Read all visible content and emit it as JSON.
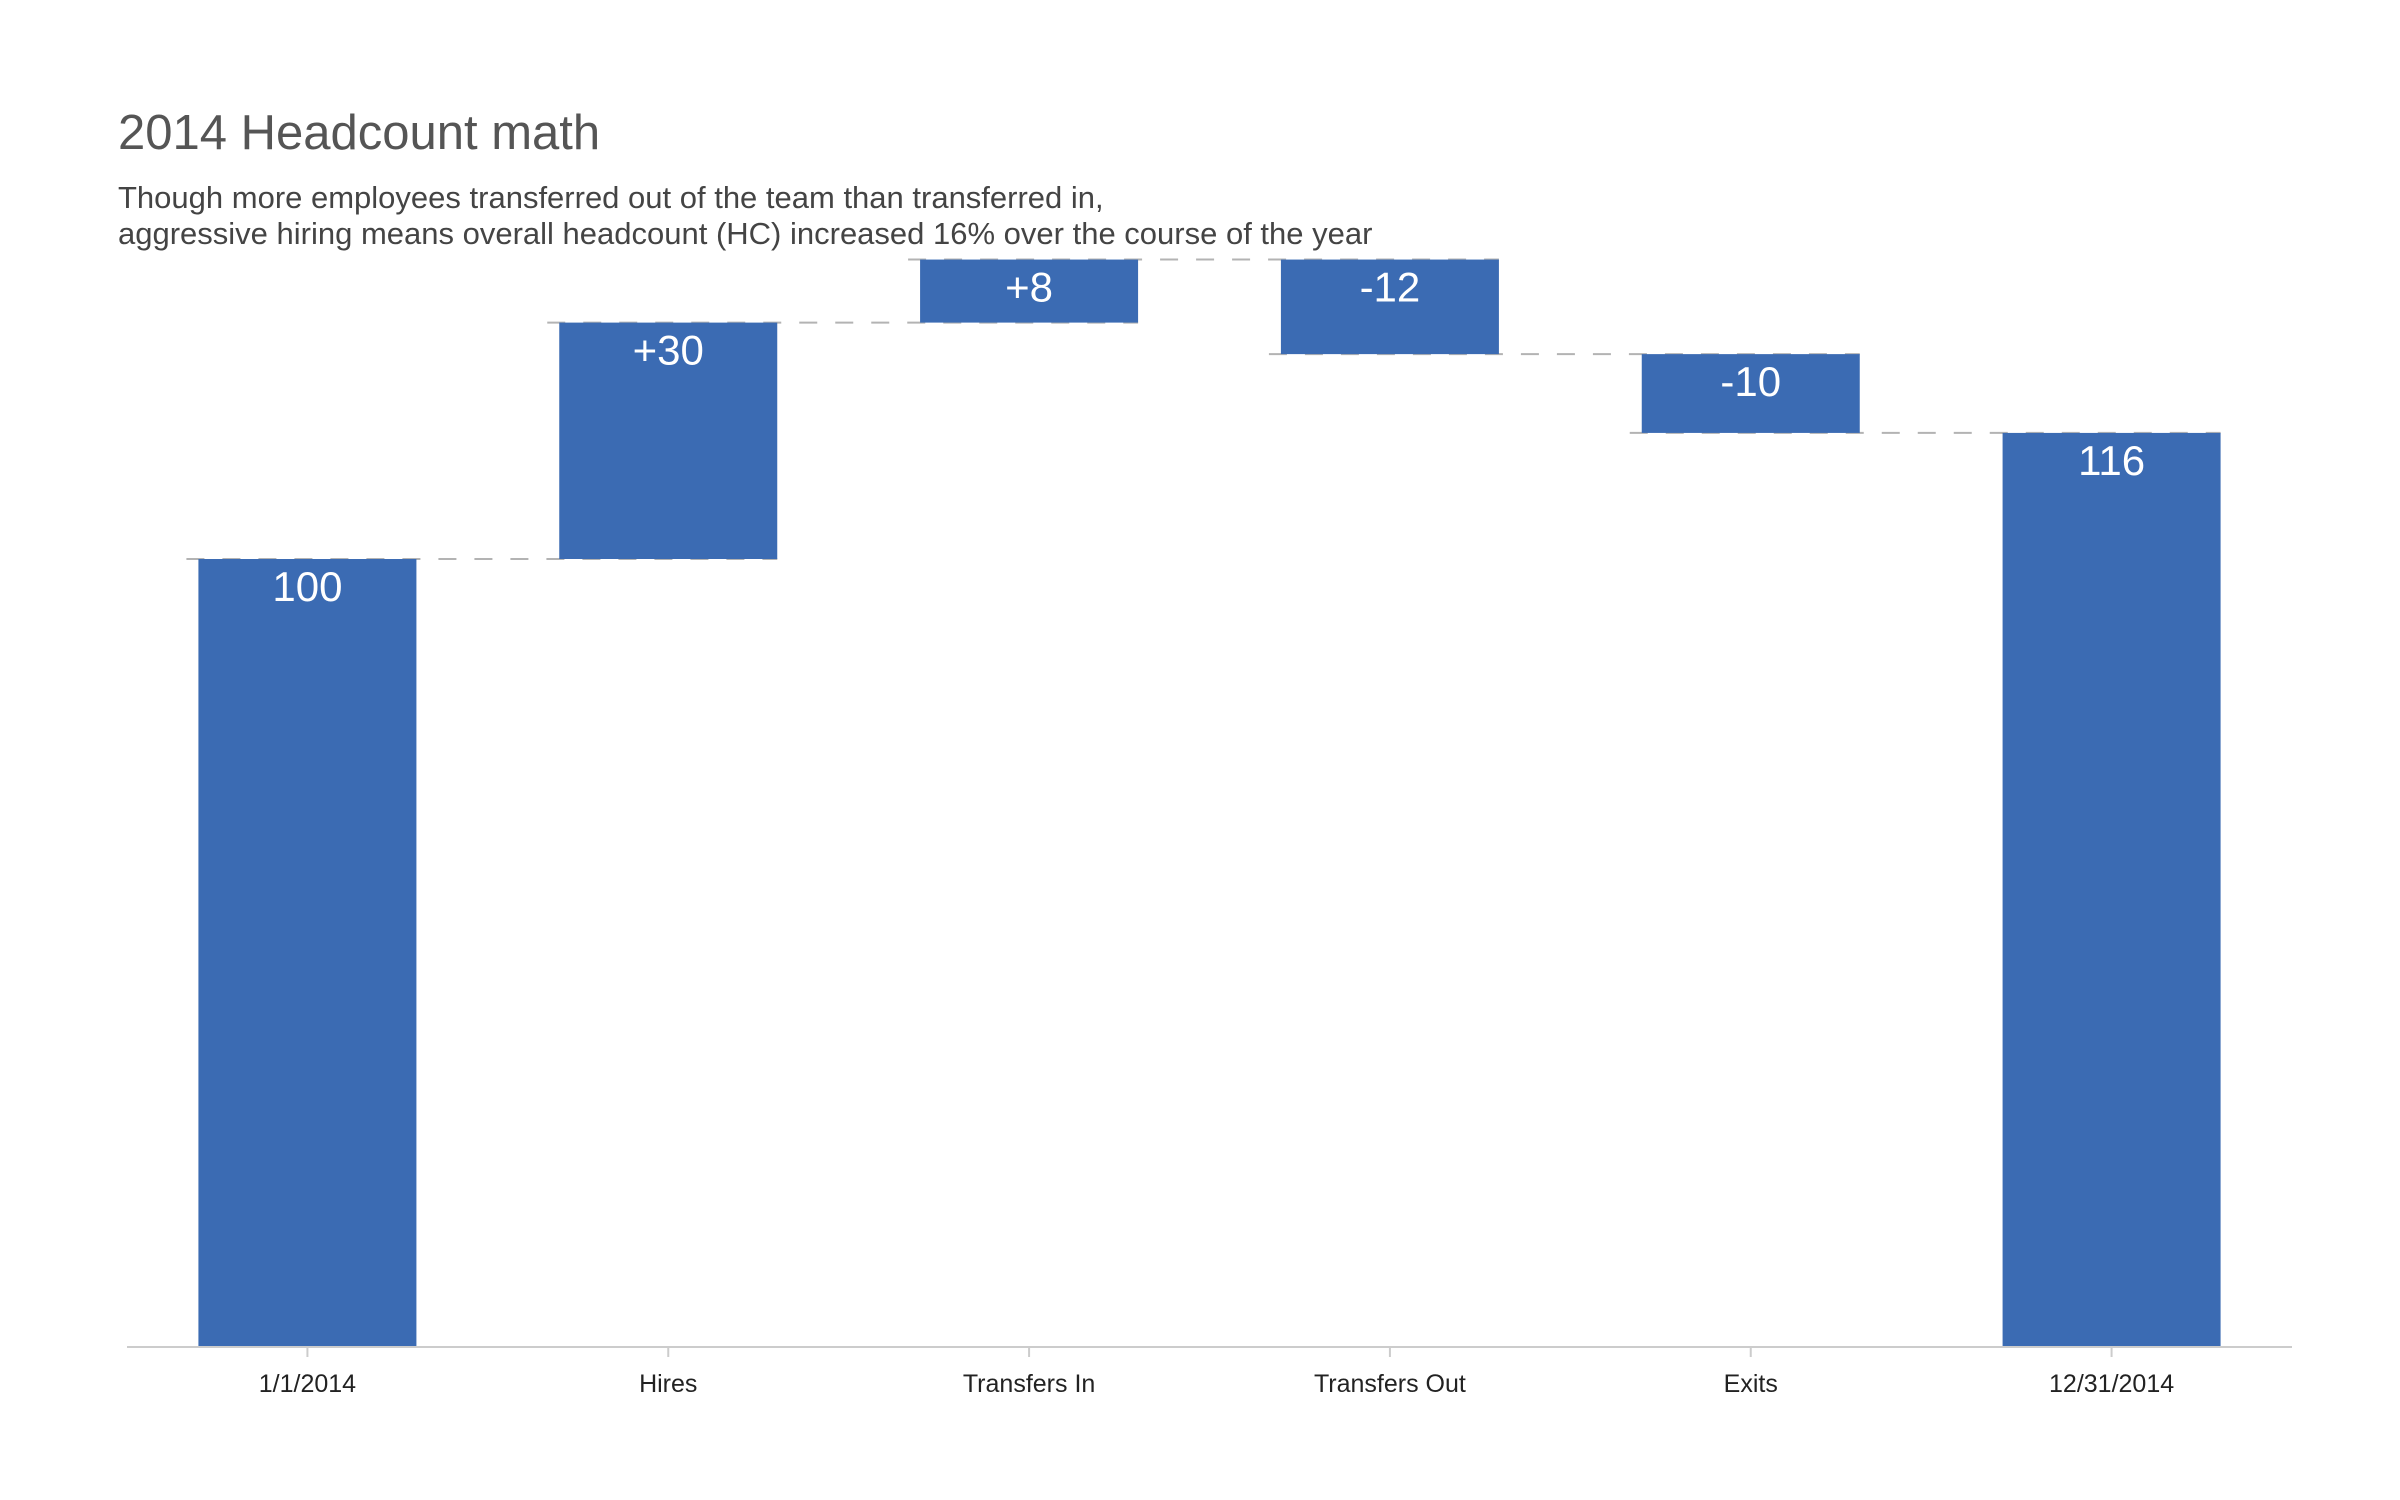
{
  "chart_data": {
    "type": "bar",
    "variant": "waterfall",
    "title": "2014 Headcount math",
    "subtitle": [
      "Though more employees transferred out of the team than transferred in,",
      "aggressive hiring means overall headcount (HC) increased 16% over the course of the year"
    ],
    "categories": [
      "1/1/2014",
      "Hires",
      "Transfers In",
      "Transfers Out",
      "Exits",
      "12/31/2014"
    ],
    "steps": [
      {
        "category": "1/1/2014",
        "kind": "total",
        "value": 100,
        "label": "100"
      },
      {
        "category": "Hires",
        "kind": "delta",
        "value": 30,
        "label": "+30"
      },
      {
        "category": "Transfers In",
        "kind": "delta",
        "value": 8,
        "label": "+8"
      },
      {
        "category": "Transfers Out",
        "kind": "delta",
        "value": -12,
        "label": "-12"
      },
      {
        "category": "Exits",
        "kind": "delta",
        "value": -10,
        "label": "-10"
      },
      {
        "category": "12/31/2014",
        "kind": "total",
        "value": 116,
        "label": "116"
      }
    ],
    "xlabel": "",
    "ylabel": "",
    "ylim": [
      0,
      138
    ],
    "grid": false,
    "legend": "none",
    "connectors": "dashed",
    "colors": {
      "bar": "#3B6BB3",
      "connector": "#B3B3B3",
      "axis": "#CCCCCC",
      "label": "#FFFFFF"
    }
  }
}
